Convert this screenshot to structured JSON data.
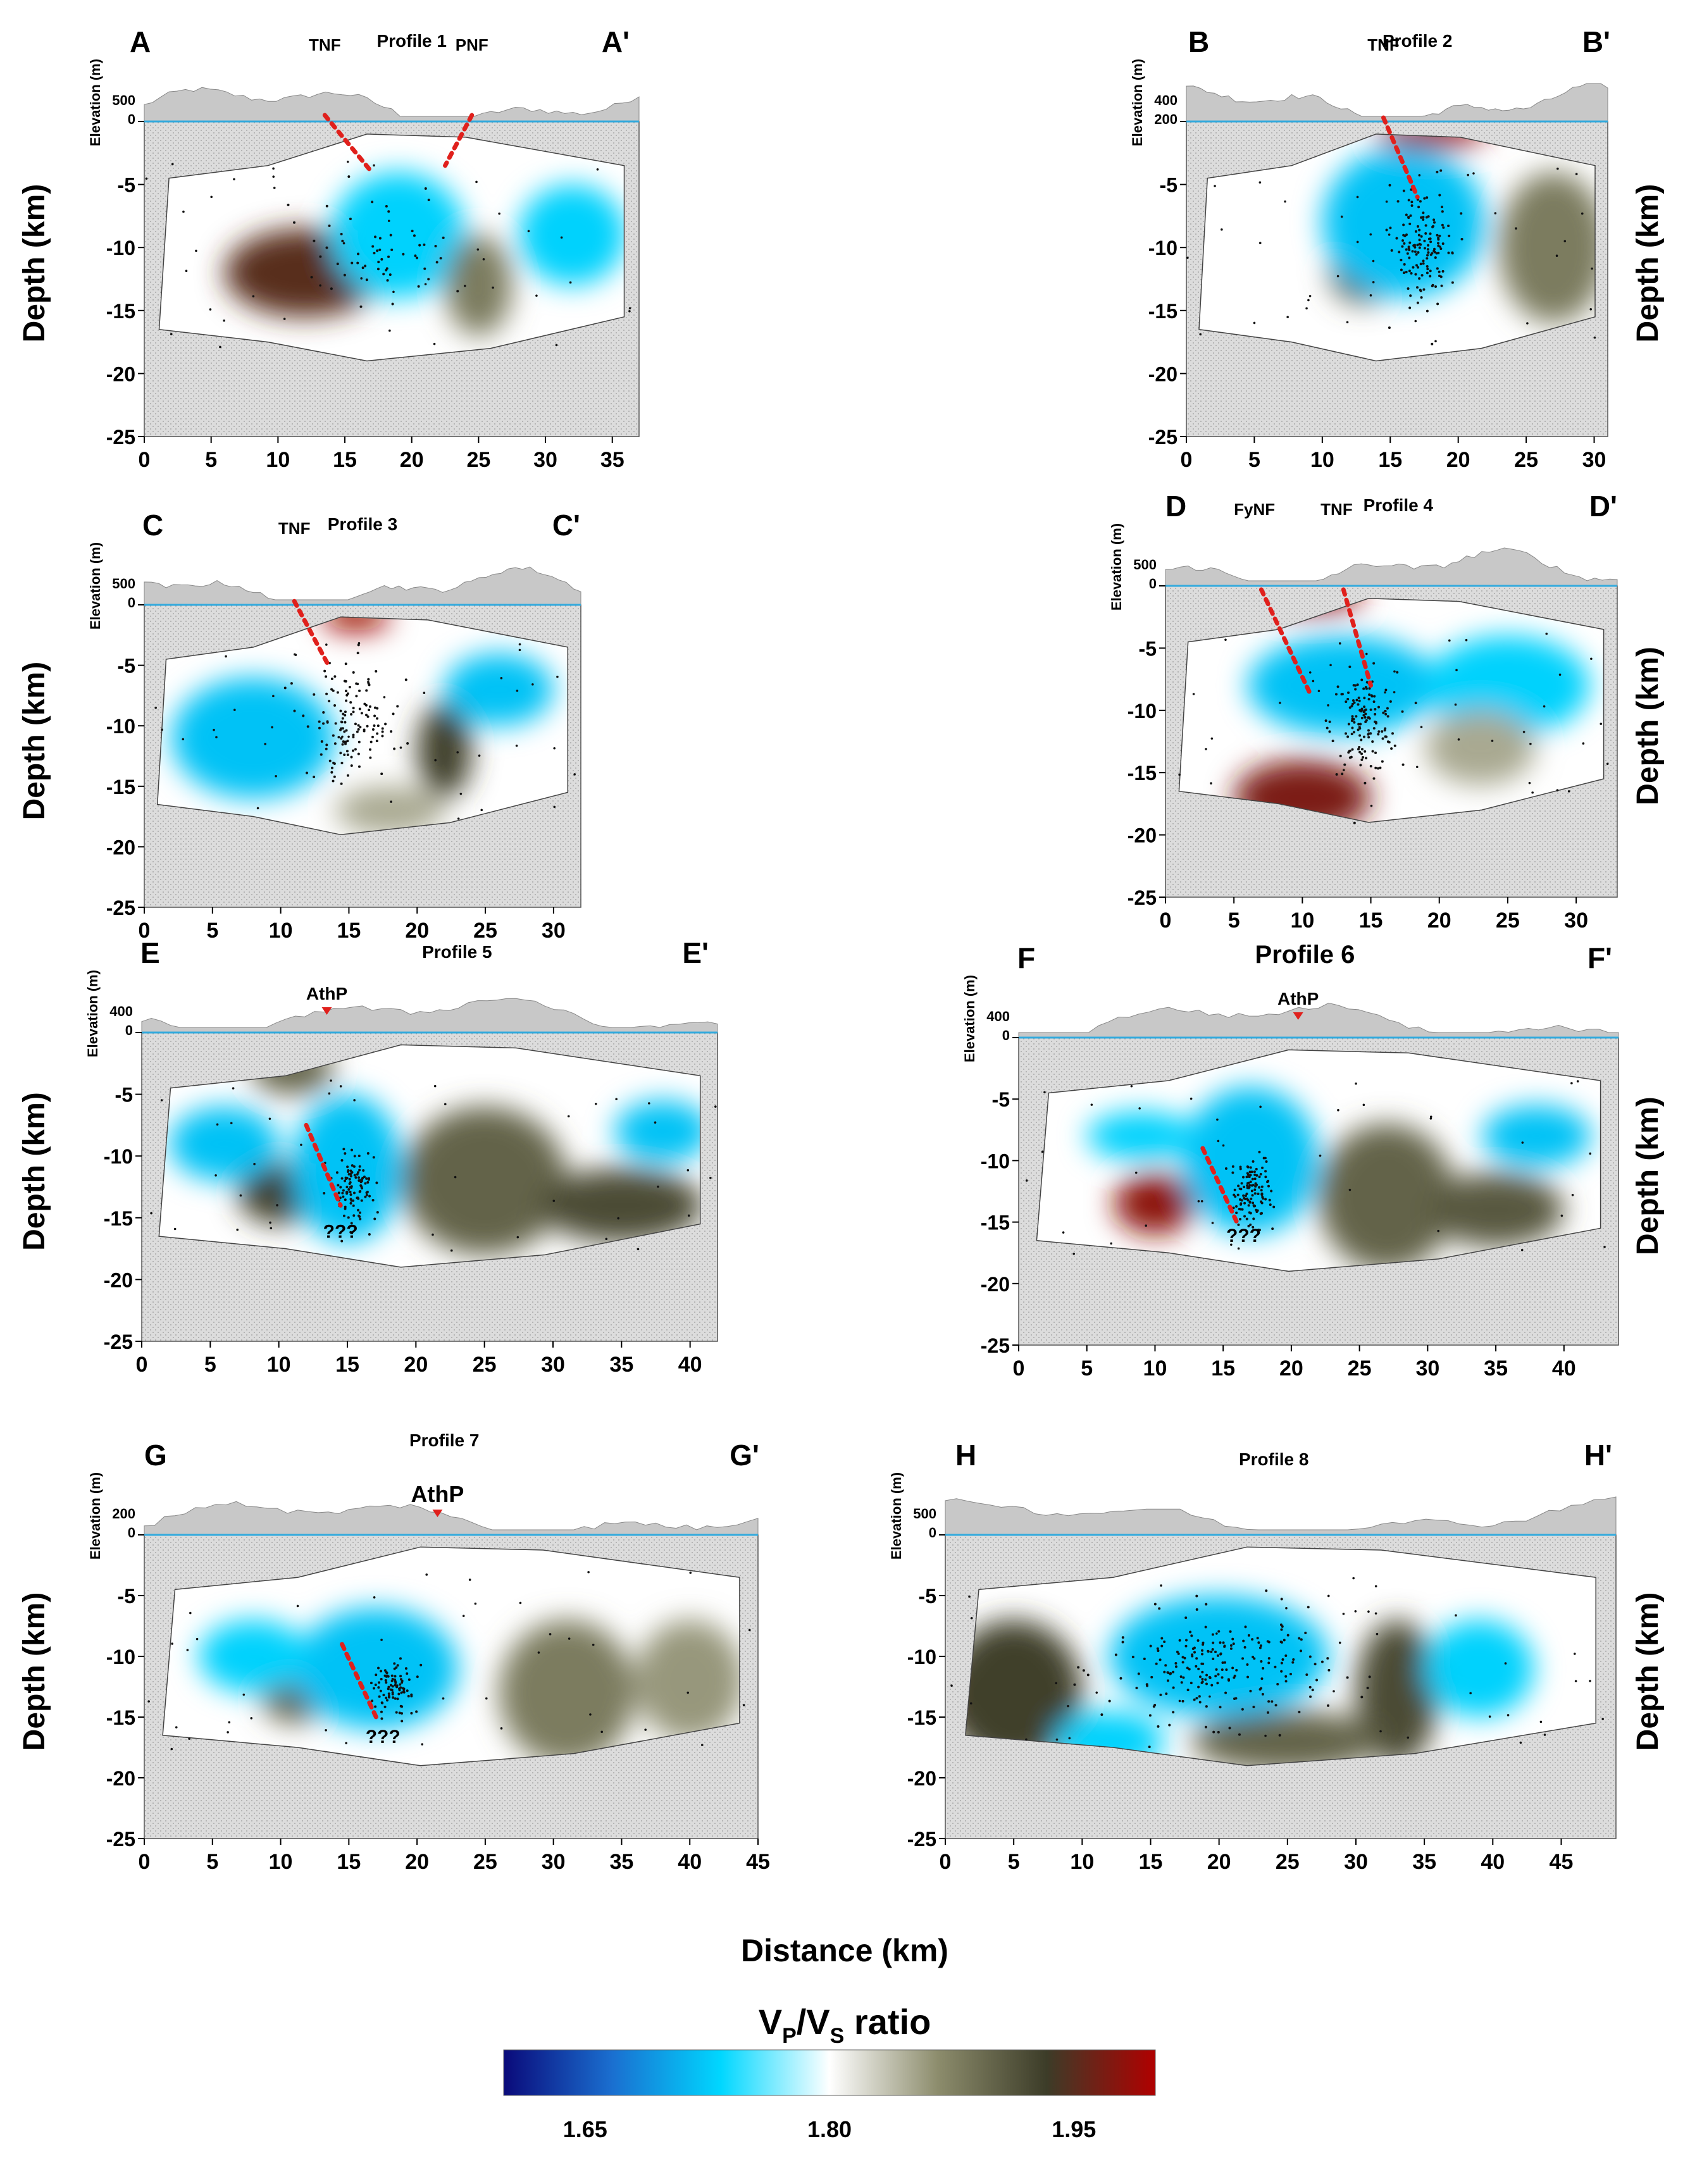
{
  "figure": {
    "x_title": "Distance (km)",
    "y_title": "Depth (km)",
    "elev_title": "Elevation (m)",
    "colorbar": {
      "title_main": "V",
      "title_sub1": "P",
      "title_mid": "/V",
      "title_sub2": "S",
      "title_tail": " ratio",
      "ticks": [
        "1.65",
        "1.80",
        "1.95"
      ],
      "tick_values": [
        1.65,
        1.8,
        1.95
      ],
      "range": [
        1.6,
        2.0
      ],
      "colors": [
        "#0a0a7a",
        "#1a6fd0",
        "#00d7ff",
        "#ffffff",
        "#8c8c6c",
        "#3c3c28",
        "#b00000"
      ]
    },
    "colors": {
      "fault": "#e0201c",
      "hatch_fill": "#d9d9d9",
      "topo_fill": "#c8c8c8",
      "quakes": "#111111"
    }
  },
  "chart_data": [
    {
      "type": "heatmap",
      "id": "p1",
      "label_left": "A",
      "label_right": "A'",
      "title": "Profile 1",
      "xlim": [
        0,
        37
      ],
      "xticks": [
        0,
        5,
        10,
        15,
        20,
        25,
        30,
        35
      ],
      "ylim": [
        -25,
        0
      ],
      "yticks": [
        0,
        -5,
        -10,
        -15,
        -20,
        -25
      ],
      "elev_ticks": [
        "500",
        "0"
      ],
      "annotations": [
        {
          "text": "TNF",
          "x": 13.5
        },
        {
          "text": "PNF",
          "x": 24.5
        }
      ],
      "faults": [
        {
          "x1": 13.5,
          "y1": 0.5,
          "x2": 17,
          "y2": -4
        },
        {
          "x1": 24.5,
          "y1": 0.5,
          "x2": 22.5,
          "y2": -3.5
        }
      ],
      "anomalies": [
        {
          "x": 12,
          "y": -12,
          "v": 1.95,
          "rx": 6,
          "ry": 3.5
        },
        {
          "x": 19,
          "y": -9,
          "v": 1.73,
          "rx": 5,
          "ry": 5
        },
        {
          "x": 32,
          "y": -9,
          "v": 1.73,
          "rx": 4,
          "ry": 4
        },
        {
          "x": 25,
          "y": -13,
          "v": 1.88,
          "rx": 2.5,
          "ry": 4
        }
      ],
      "quake_cluster": {
        "x": 18,
        "y": -10,
        "n": 60,
        "sx": 3,
        "sy": 3
      }
    },
    {
      "type": "heatmap",
      "id": "p2",
      "label_left": "B",
      "label_right": "B'",
      "title": "Profile 2",
      "xlim": [
        0,
        31
      ],
      "xticks": [
        0,
        5,
        10,
        15,
        20,
        25,
        30
      ],
      "ylim": [
        -25,
        0
      ],
      "yticks": [
        0,
        -5,
        -10,
        -15,
        -20,
        -25
      ],
      "elev_ticks": [
        "400",
        "200"
      ],
      "annotations": [
        {
          "text": "TNF",
          "x": 14.5
        }
      ],
      "faults": [
        {
          "x1": 14.5,
          "y1": 0.3,
          "x2": 17,
          "y2": -6
        }
      ],
      "anomalies": [
        {
          "x": 18,
          "y": -1,
          "v": 1.99,
          "rx": 4,
          "ry": 1.2
        },
        {
          "x": 13,
          "y": -12,
          "v": 1.9,
          "rx": 2.5,
          "ry": 2.5
        },
        {
          "x": 16,
          "y": -8,
          "v": 1.72,
          "rx": 6,
          "ry": 6
        },
        {
          "x": 27,
          "y": -10,
          "v": 1.88,
          "rx": 4,
          "ry": 6
        }
      ],
      "quake_cluster": {
        "x": 17.5,
        "y": -10,
        "n": 150,
        "sx": 1.2,
        "sy": 2.2
      }
    },
    {
      "type": "heatmap",
      "id": "p3",
      "label_left": "C",
      "label_right": "C'",
      "title": "Profile 3",
      "xlim": [
        0,
        32
      ],
      "xticks": [
        0,
        5,
        10,
        15,
        20,
        25,
        30
      ],
      "ylim": [
        -25,
        0
      ],
      "yticks": [
        0,
        -5,
        -10,
        -15,
        -20,
        -25
      ],
      "elev_ticks": [
        "500",
        "0"
      ],
      "annotations": [
        {
          "text": "TNF",
          "x": 11
        }
      ],
      "faults": [
        {
          "x1": 11,
          "y1": 0.3,
          "x2": 13.5,
          "y2": -5
        }
      ],
      "anomalies": [
        {
          "x": 15.5,
          "y": -1,
          "v": 1.99,
          "rx": 2.5,
          "ry": 1.2
        },
        {
          "x": 22,
          "y": -12,
          "v": 1.93,
          "rx": 2,
          "ry": 4
        },
        {
          "x": 8,
          "y": -11,
          "v": 1.72,
          "rx": 6,
          "ry": 5
        },
        {
          "x": 26,
          "y": -7,
          "v": 1.72,
          "rx": 4,
          "ry": 3
        },
        {
          "x": 18,
          "y": -17,
          "v": 1.85,
          "rx": 4,
          "ry": 2
        }
      ],
      "quake_cluster": {
        "x": 15,
        "y": -10,
        "n": 140,
        "sx": 1.4,
        "sy": 2.5
      }
    },
    {
      "type": "heatmap",
      "id": "p4",
      "label_left": "D",
      "label_right": "D'",
      "title": "Profile 4",
      "xlim": [
        0,
        33
      ],
      "xticks": [
        0,
        5,
        10,
        15,
        20,
        25,
        30
      ],
      "ylim": [
        -25,
        0
      ],
      "yticks": [
        0,
        -5,
        -10,
        -15,
        -20,
        -25
      ],
      "elev_ticks": [
        "500",
        "0"
      ],
      "annotations": [
        {
          "text": "FyNF",
          "x": 6.5
        },
        {
          "text": "TNF",
          "x": 12.5
        }
      ],
      "faults": [
        {
          "x1": 7,
          "y1": -0.3,
          "x2": 10.5,
          "y2": -8.5
        },
        {
          "x1": 13,
          "y1": -0.3,
          "x2": 15,
          "y2": -8
        }
      ],
      "anomalies": [
        {
          "x": 10.5,
          "y": -1,
          "v": 1.99,
          "rx": 4,
          "ry": 1.2
        },
        {
          "x": 10,
          "y": -17,
          "v": 1.97,
          "rx": 5,
          "ry": 3
        },
        {
          "x": 13,
          "y": -8,
          "v": 1.72,
          "rx": 7,
          "ry": 4
        },
        {
          "x": 25,
          "y": -8,
          "v": 1.73,
          "rx": 6,
          "ry": 4
        },
        {
          "x": 23,
          "y": -13,
          "v": 1.85,
          "rx": 4,
          "ry": 3
        }
      ],
      "quake_cluster": {
        "x": 14.5,
        "y": -11,
        "n": 150,
        "sx": 1.2,
        "sy": 2
      }
    },
    {
      "type": "heatmap",
      "id": "p5",
      "label_left": "E",
      "label_right": "E'",
      "title": "Profile 5",
      "xlim": [
        0,
        42
      ],
      "xticks": [
        0,
        5,
        10,
        15,
        20,
        25,
        30,
        35,
        40
      ],
      "ylim": [
        -25,
        0
      ],
      "yticks": [
        0,
        -5,
        -10,
        -15,
        -20,
        -25
      ],
      "elev_ticks": [
        "400",
        "0"
      ],
      "annotations": [
        {
          "text": "AthP",
          "x": 13.5,
          "volcano": true
        },
        {
          "text": "???",
          "x": 14.5,
          "y": -16
        }
      ],
      "faults": [
        {
          "x1": 12,
          "y1": -7.5,
          "x2": 14.5,
          "y2": -14
        }
      ],
      "anomalies": [
        {
          "x": 10,
          "y": -13,
          "v": 1.93,
          "rx": 3,
          "ry": 2.5
        },
        {
          "x": 11,
          "y": -3,
          "v": 1.9,
          "rx": 3,
          "ry": 2
        },
        {
          "x": 25,
          "y": -12,
          "v": 1.9,
          "rx": 6,
          "ry": 6
        },
        {
          "x": 35,
          "y": -14,
          "v": 1.92,
          "rx": 6,
          "ry": 3
        },
        {
          "x": 38,
          "y": -8,
          "v": 1.72,
          "rx": 3.5,
          "ry": 2.5
        },
        {
          "x": 15,
          "y": -11,
          "v": 1.72,
          "rx": 4,
          "ry": 6
        },
        {
          "x": 6,
          "y": -9,
          "v": 1.72,
          "rx": 4,
          "ry": 3
        }
      ],
      "quake_cluster": {
        "x": 15.5,
        "y": -12.5,
        "n": 110,
        "sx": 0.8,
        "sy": 1.3
      }
    },
    {
      "type": "heatmap",
      "id": "p6",
      "label_left": "F",
      "label_right": "F'",
      "title": "Profile 6",
      "xlim": [
        0,
        44
      ],
      "xticks": [
        0,
        5,
        10,
        15,
        20,
        25,
        30,
        35,
        40
      ],
      "ylim": [
        -25,
        0
      ],
      "yticks": [
        0,
        -5,
        -10,
        -15,
        -20,
        -25
      ],
      "elev_ticks": [
        "400",
        "0"
      ],
      "annotations": [
        {
          "text": "AthP",
          "x": 20.5,
          "volcano": true
        },
        {
          "text": "???",
          "x": 16.5,
          "y": -16
        }
      ],
      "faults": [
        {
          "x1": 13.5,
          "y1": -9,
          "x2": 16,
          "y2": -15
        }
      ],
      "anomalies": [
        {
          "x": 10,
          "y": -13.5,
          "v": 1.98,
          "rx": 3,
          "ry": 2.5
        },
        {
          "x": 27,
          "y": -13,
          "v": 1.9,
          "rx": 5,
          "ry": 6
        },
        {
          "x": 35,
          "y": -14,
          "v": 1.91,
          "rx": 5,
          "ry": 3
        },
        {
          "x": 38,
          "y": -8,
          "v": 1.72,
          "rx": 4,
          "ry": 2.5
        },
        {
          "x": 17,
          "y": -10,
          "v": 1.72,
          "rx": 5,
          "ry": 6
        },
        {
          "x": 9,
          "y": -8,
          "v": 1.73,
          "rx": 4,
          "ry": 2
        }
      ],
      "quake_cluster": {
        "x": 17,
        "y": -12.5,
        "n": 120,
        "sx": 0.8,
        "sy": 1.4
      }
    },
    {
      "type": "heatmap",
      "id": "p7",
      "label_left": "G",
      "label_right": "G'",
      "title": "Profile 7",
      "xlim": [
        0,
        45
      ],
      "xticks": [
        0,
        5,
        10,
        15,
        20,
        25,
        30,
        35,
        40,
        45
      ],
      "ylim": [
        -25,
        0
      ],
      "yticks": [
        0,
        -5,
        -10,
        -15,
        -20,
        -25
      ],
      "elev_ticks": [
        "200",
        "0"
      ],
      "annotations": [
        {
          "text": "AthP",
          "x": 21.5,
          "volcano": true
        },
        {
          "text": "???",
          "x": 17.5,
          "y": -16.5
        }
      ],
      "faults": [
        {
          "x1": 14.5,
          "y1": -9,
          "x2": 17,
          "y2": -15
        }
      ],
      "anomalies": [
        {
          "x": 11,
          "y": -13,
          "v": 1.9,
          "rx": 2.5,
          "ry": 2.5
        },
        {
          "x": 31,
          "y": -13,
          "v": 1.88,
          "rx": 5,
          "ry": 6
        },
        {
          "x": 40,
          "y": -12,
          "v": 1.86,
          "rx": 4,
          "ry": 5
        },
        {
          "x": 17,
          "y": -11,
          "v": 1.72,
          "rx": 6,
          "ry": 5
        },
        {
          "x": 8,
          "y": -10,
          "v": 1.73,
          "rx": 4,
          "ry": 3
        }
      ],
      "quake_cluster": {
        "x": 18.3,
        "y": -12.8,
        "n": 90,
        "sx": 0.8,
        "sy": 1.1
      }
    },
    {
      "type": "heatmap",
      "id": "p8",
      "label_left": "H",
      "label_right": "H'",
      "title": "Profile 8",
      "xlim": [
        0,
        49
      ],
      "xticks": [
        0,
        5,
        10,
        15,
        20,
        25,
        30,
        35,
        40,
        45
      ],
      "ylim": [
        -25,
        0
      ],
      "yticks": [
        0,
        -5,
        -10,
        -15,
        -20,
        -25
      ],
      "elev_ticks": [
        "500",
        "0"
      ],
      "annotations": [],
      "faults": [],
      "anomalies": [
        {
          "x": 1,
          "y": -13,
          "v": 1.97,
          "rx": 1.5,
          "ry": 3
        },
        {
          "x": 5,
          "y": -13,
          "v": 1.93,
          "rx": 5,
          "ry": 6
        },
        {
          "x": 33,
          "y": -13,
          "v": 1.92,
          "rx": 3,
          "ry": 6
        },
        {
          "x": 25,
          "y": -17,
          "v": 1.9,
          "rx": 7,
          "ry": 2.5
        },
        {
          "x": 20,
          "y": -10,
          "v": 1.72,
          "rx": 8,
          "ry": 5
        },
        {
          "x": 39,
          "y": -11,
          "v": 1.73,
          "rx": 4,
          "ry": 4
        },
        {
          "x": 12,
          "y": -17,
          "v": 1.73,
          "rx": 4,
          "ry": 2.5
        }
      ],
      "quake_cluster": {
        "x": 20,
        "y": -11,
        "n": 220,
        "sx": 4,
        "sy": 2.2
      }
    }
  ]
}
